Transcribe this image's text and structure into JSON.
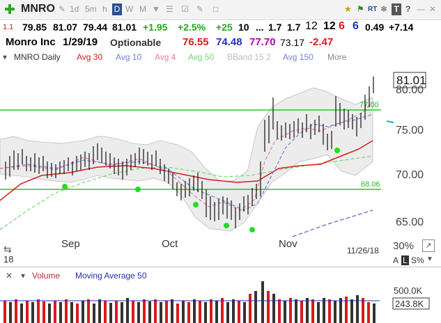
{
  "toolbar": {
    "add_icon": "plus-icon",
    "symbol": "MNRO",
    "buttons": [
      "1d",
      "5m",
      "h",
      "D",
      "W",
      "M"
    ],
    "active_button": "D",
    "right_buttons": [
      "RT",
      "T",
      "?"
    ]
  },
  "quote": {
    "n1": "1.1",
    "last": "79.85",
    "high": "81.07",
    "low": "79.44",
    "close": "81.01",
    "change": "+1.95",
    "change_pct": "+2.5%",
    "v1": "+25",
    "v2": "10",
    "v3": "...",
    "v4": "1.7",
    "v5": "1.7",
    "v6": "12",
    "v7": "12",
    "v8": "6",
    "v9": "6",
    "v10": "0.49",
    "v11": "+7.14"
  },
  "info": {
    "name": "Monro Inc",
    "date": "1/29/19",
    "optionable": "Optionable",
    "p1": "76.55",
    "p2": "74.48",
    "p3": "77.70",
    "p4": "73.17",
    "p5": "-2.47"
  },
  "legend": {
    "symbol": "MNRO Daily",
    "avg30": "Avg 30",
    "avg10": "Avg 10",
    "avg4": "Avg 4",
    "avg50": "Avg 50",
    "bband": "BBand 15 2",
    "avg150": "Avg 150",
    "more": "More"
  },
  "price_axis": {
    "current": "81.01",
    "labels": [
      "80.00",
      "75.00",
      "70.00",
      "65.00"
    ],
    "line_upper": "77.00",
    "line_lower": "68.06"
  },
  "x_axis": {
    "months": [
      "Sep",
      "Oct",
      "Nov"
    ],
    "date": "11/26/18"
  },
  "side_panel": {
    "pct": "30%",
    "a": "A",
    "l": "L",
    "s": "S%",
    "num": "18"
  },
  "volume": {
    "label": "Volume",
    "ma": "Moving Average 50",
    "axis1": "500.0K",
    "axis2": "243.8K"
  },
  "colors": {
    "green": "#1fa81f",
    "red": "#d81b1b",
    "blue": "#2030c0",
    "magenta": "#b000b0"
  }
}
